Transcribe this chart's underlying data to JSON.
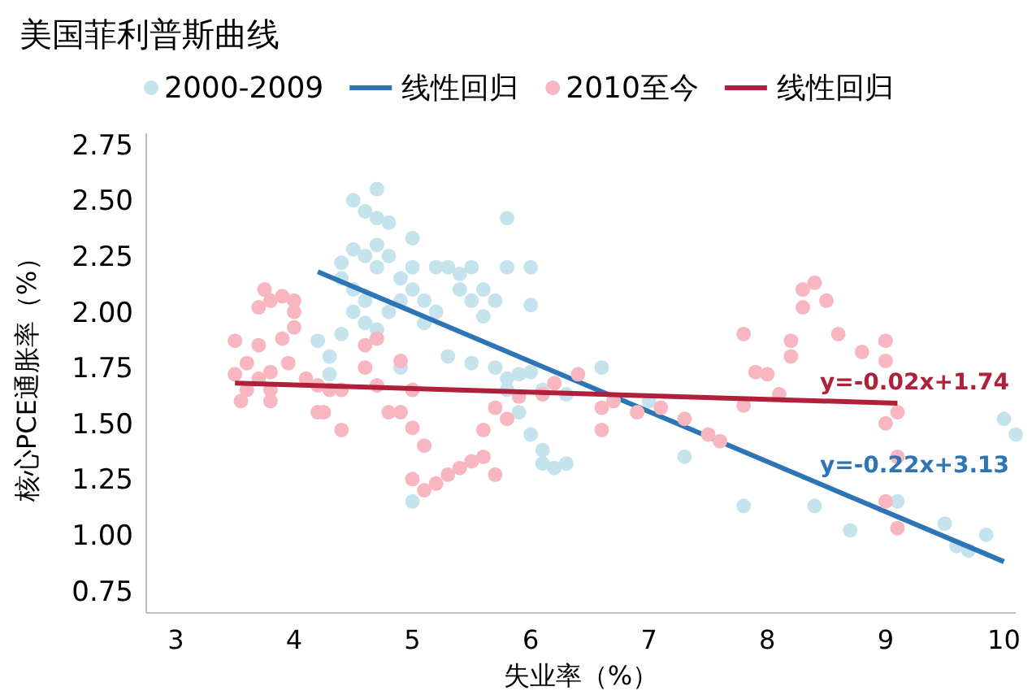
{
  "chart_data": {
    "type": "scatter",
    "title": "美国菲利普斯曲线",
    "xlabel": "失业率（%）",
    "ylabel": "核心PCE通胀率（%）",
    "xlim": [
      2.75,
      10.1
    ],
    "xticks": [
      3,
      4,
      5,
      6,
      7,
      8,
      9,
      10
    ],
    "ylim": [
      0.65,
      2.8
    ],
    "yticks": [
      {
        "value": 0.75,
        "label": "0.75"
      },
      {
        "value": 1,
        "label": "1.00"
      },
      {
        "value": 1.25,
        "label": "1.25"
      },
      {
        "value": 1.5,
        "label": "1.50"
      },
      {
        "value": 1.75,
        "label": "1.75"
      },
      {
        "value": 2,
        "label": "2.00"
      },
      {
        "value": 2.25,
        "label": "2.25"
      },
      {
        "value": 2.5,
        "label": "2.50"
      },
      {
        "value": 2.75,
        "label": "2.75"
      }
    ],
    "grid": false,
    "legend": "top",
    "series": [
      {
        "name": "2000-2009",
        "color": "#c5e3ec",
        "x": [
          4.2,
          4.3,
          4.3,
          4.4,
          4.4,
          4.4,
          4.5,
          4.6,
          4.7,
          4.7,
          4.5,
          4.6,
          4.7,
          4.5,
          4.6,
          4.7,
          4.8,
          4.8,
          4.9,
          4.9,
          4.5,
          4.6,
          4.7,
          4.8,
          5.0,
          5.0,
          5.0,
          5.1,
          5.1,
          5.2,
          5.2,
          5.3,
          5.4,
          5.4,
          5.5,
          5.5,
          5.6,
          5.6,
          5.7,
          5.8,
          5.8,
          6.0,
          6.0,
          5.5,
          5.7,
          5.8,
          5.8,
          5.9,
          6.0,
          6.1,
          6.3,
          5.9,
          6.0,
          6.1,
          6.2,
          6.1,
          6.3,
          6.6,
          7.0,
          7.3,
          7.8,
          8.4,
          8.7,
          9.1,
          9.5,
          9.6,
          9.7,
          9.85,
          10.0,
          10.1,
          5.0,
          4.9,
          5.3
        ],
        "values": [
          1.87,
          1.8,
          1.72,
          1.9,
          2.22,
          2.15,
          2.5,
          2.45,
          2.55,
          2.42,
          2.28,
          2.25,
          2.3,
          2.1,
          2.05,
          2.2,
          2.25,
          2.4,
          2.15,
          2.05,
          2.0,
          1.95,
          1.92,
          2.0,
          2.2,
          2.1,
          2.33,
          2.05,
          1.95,
          2.2,
          2.0,
          2.2,
          2.1,
          2.17,
          2.2,
          2.05,
          1.98,
          2.1,
          2.05,
          2.42,
          2.2,
          2.2,
          2.03,
          1.77,
          1.75,
          1.7,
          1.65,
          1.72,
          1.73,
          1.65,
          1.63,
          1.55,
          1.45,
          1.38,
          1.3,
          1.32,
          1.32,
          1.75,
          1.6,
          1.35,
          1.13,
          1.13,
          1.02,
          1.15,
          1.05,
          0.95,
          0.93,
          1.0,
          1.52,
          1.45,
          1.15,
          1.75,
          1.8
        ]
      },
      {
        "name": "线性回归",
        "type": "line",
        "color": "#2e75b6",
        "x": [
          4.2,
          10.0
        ],
        "values": [
          2.18,
          0.88
        ]
      },
      {
        "name": "2010至今",
        "color": "#f7b6c0",
        "x": [
          3.5,
          3.5,
          3.6,
          3.55,
          3.6,
          3.7,
          3.7,
          3.8,
          3.8,
          3.7,
          3.75,
          3.8,
          3.9,
          4.0,
          4.0,
          4.0,
          3.8,
          3.9,
          3.95,
          4.1,
          4.2,
          4.25,
          4.3,
          4.4,
          4.4,
          4.2,
          4.6,
          4.6,
          4.7,
          4.7,
          4.8,
          4.9,
          4.9,
          5.0,
          5.0,
          5.1,
          5.0,
          5.1,
          5.2,
          5.3,
          5.4,
          5.5,
          5.6,
          5.7,
          5.6,
          5.8,
          5.7,
          5.9,
          6.1,
          6.2,
          6.4,
          6.6,
          6.6,
          6.7,
          6.9,
          7.1,
          7.3,
          7.5,
          7.6,
          7.8,
          7.8,
          7.9,
          8.0,
          8.1,
          8.2,
          8.2,
          8.3,
          8.4,
          8.3,
          8.5,
          8.6,
          8.8,
          9.0,
          9.0,
          9.1,
          9.0,
          9.1,
          9.1,
          9.0
        ],
        "values": [
          1.87,
          1.72,
          1.65,
          1.6,
          1.77,
          1.85,
          1.7,
          1.73,
          1.65,
          2.02,
          2.1,
          2.05,
          2.07,
          2.05,
          2.0,
          1.93,
          1.6,
          1.88,
          1.77,
          1.7,
          1.67,
          1.55,
          1.65,
          1.65,
          1.47,
          1.55,
          1.85,
          1.75,
          1.88,
          1.67,
          1.55,
          1.78,
          1.55,
          1.65,
          1.48,
          1.4,
          1.25,
          1.2,
          1.23,
          1.27,
          1.3,
          1.33,
          1.35,
          1.27,
          1.47,
          1.52,
          1.57,
          1.62,
          1.63,
          1.68,
          1.72,
          1.57,
          1.47,
          1.6,
          1.55,
          1.57,
          1.52,
          1.45,
          1.42,
          1.58,
          1.9,
          1.73,
          1.72,
          1.63,
          1.87,
          1.8,
          2.1,
          2.13,
          2.02,
          2.05,
          1.9,
          1.82,
          1.87,
          1.78,
          1.55,
          1.5,
          1.35,
          1.03,
          1.15
        ]
      },
      {
        "name": "线性回归",
        "type": "line",
        "color": "#b0203a",
        "x": [
          3.5,
          9.1
        ],
        "values": [
          1.68,
          1.59
        ]
      }
    ],
    "annotations": [
      "y=-0.02x+1.74",
      "y=-0.22x+3.13"
    ]
  }
}
